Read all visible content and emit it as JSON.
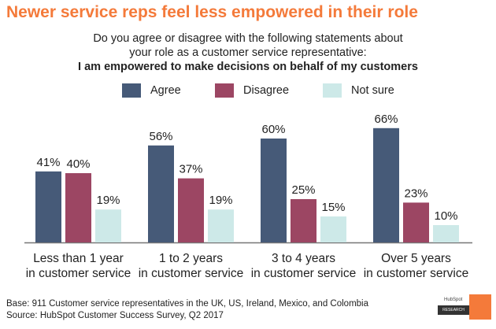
{
  "title": "Newer service reps feel less empowered in their role",
  "subtitle_line1": "Do you agree or disagree with the following statements about",
  "subtitle_line2": "your role as a customer service representative:",
  "subtitle_line3": "I am empowered to make decisions on behalf of my customers",
  "footer_base": "Base: 911 Customer service representatives in the UK, US, Ireland, Mexico, and Colombia",
  "footer_source": "Source: HubSpot Customer Success Survey, Q2 2017",
  "logo": {
    "brand": "HubSpot",
    "label": "RESEARCH"
  },
  "chart_data": {
    "type": "bar",
    "categories": [
      [
        "Less than 1 year",
        "in customer service"
      ],
      [
        "1 to 2 years",
        "in customer service"
      ],
      [
        "3 to 4 years",
        "in customer service"
      ],
      [
        "Over 5 years",
        "in customer service"
      ]
    ],
    "series": [
      {
        "name": "Agree",
        "color": "#465a78",
        "values": [
          41,
          56,
          60,
          66
        ]
      },
      {
        "name": "Disagree",
        "color": "#9c4663",
        "values": [
          40,
          37,
          25,
          23
        ]
      },
      {
        "name": "Not sure",
        "color": "#cde9e8",
        "values": [
          19,
          19,
          15,
          10
        ]
      }
    ],
    "unit": "%",
    "ylim": [
      0,
      70
    ],
    "grid": false,
    "legend": "top"
  }
}
